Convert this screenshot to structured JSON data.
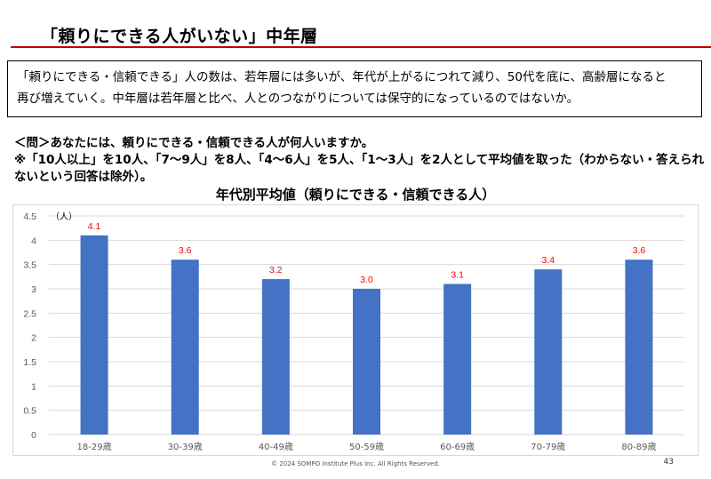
{
  "slide": {
    "title": "「頼りにできる人がいない」中年層",
    "summary_line1": "「頼りにできる・信頼できる」人の数は、若年層には多いが、年代が上がるにつれて減り、50代を底に、高齢層になると",
    "summary_line2": "再び増えていく。中年層は若年層と比べ、人とのつながりについては保守的になっているのではないか。",
    "question_line1": "＜問＞あなたには、頼りにできる・信頼できる人が何人いますか。",
    "question_line2": "※「10人以上」を10人、「7～9人」を8人、「4～6人」を5人、「1～3人」を2人として平均値を取った（わからない・答えられ",
    "question_line3": "ないという回答は除外）。",
    "footer": "© 2024 SOMPO Institute Plus Inc. All Rights Reserved.",
    "page_number": "43"
  },
  "chart_data": {
    "type": "bar",
    "title": "年代別平均値（頼りにできる・信頼できる人）",
    "ylabel": "（人）",
    "categories": [
      "18-29歳",
      "30-39歳",
      "40-49歳",
      "50-59歳",
      "60-69歳",
      "70-79歳",
      "80-89歳"
    ],
    "values": [
      4.1,
      3.6,
      3.2,
      3.0,
      3.1,
      3.4,
      3.6
    ],
    "data_labels": [
      "4.1",
      "3.6",
      "3.2",
      "3.0",
      "3.1",
      "3.4",
      "3.6"
    ],
    "yticks": [
      "0",
      "0.5",
      "1",
      "1.5",
      "2",
      "2.5",
      "3",
      "3.5",
      "4",
      "4.5"
    ],
    "ylim": [
      0,
      4.5
    ],
    "grid": true,
    "bar_color": "#4472c4",
    "label_color": "#ff0000",
    "gridline_color": "#d9d9d9"
  }
}
